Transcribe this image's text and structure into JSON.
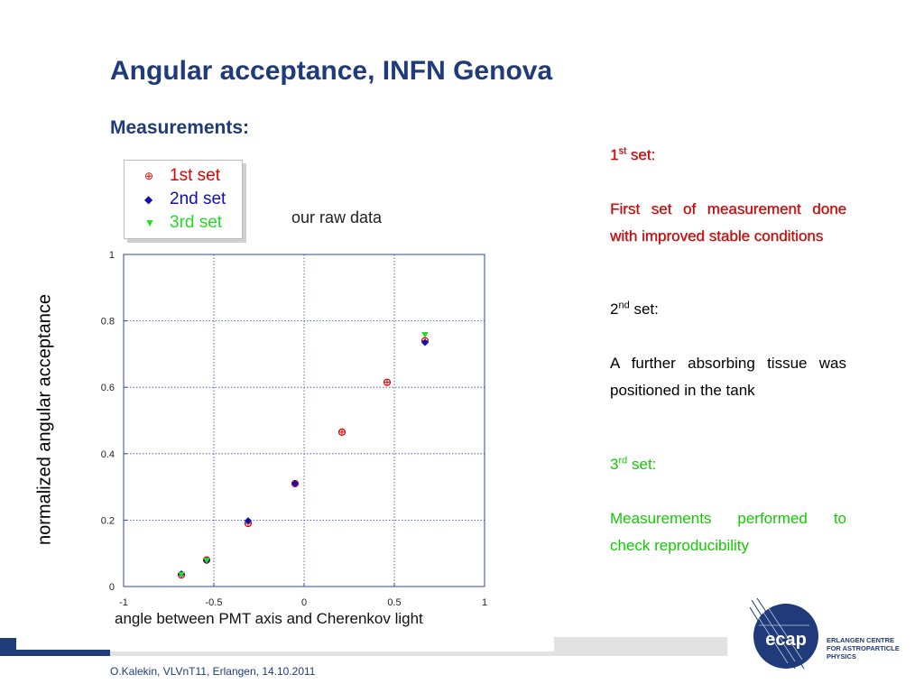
{
  "slide": {
    "title": "Angular acceptance, INFN Genova",
    "subtitle": "Measurements:",
    "footer": "O.Kalekin, VLVnT11, Erlangen, 14.10.2011"
  },
  "side_notes": {
    "set1": {
      "num": "1",
      "sup": "st",
      "label": "set:",
      "text": "First  set of measurement done with improved stable conditions"
    },
    "set2": {
      "num": "2",
      "sup": "nd",
      "label": "set:",
      "text": "A further absorbing tissue was positioned in the tank"
    },
    "set3": {
      "num": "3",
      "sup": "rd",
      "label": "set:",
      "text": "Measurements performed to check reproducibility"
    }
  },
  "logo": {
    "mark": "ecap",
    "text_lines": [
      "ERLANGEN CENTRE",
      "FOR ASTROPARTICLE",
      "PHYSICS"
    ]
  },
  "colors": {
    "brand": "#1f3b7a",
    "set1": "#e00000",
    "set2": "#1010aa",
    "set3": "#22dd22"
  },
  "chart_data": {
    "type": "scatter",
    "annotation": "our raw data",
    "xlabel": "angle between PMT axis and Cherenkov light",
    "ylabel": "normalized angular acceptance",
    "xlim": [
      -1,
      1
    ],
    "ylim": [
      0,
      1
    ],
    "x_ticks": [
      "-1",
      "-0.5",
      "0",
      "0.5",
      "1"
    ],
    "y_ticks": [
      "0",
      "0.2",
      "0.4",
      "0.6",
      "0.8",
      "1"
    ],
    "grid": true,
    "legend_position": "top-left, outside plot",
    "series": [
      {
        "name": "1st set",
        "marker": "open-circle-cross",
        "color": "#e00000",
        "points": [
          [
            -0.68,
            0.035
          ],
          [
            -0.54,
            0.08
          ],
          [
            -0.31,
            0.19
          ],
          [
            -0.05,
            0.31
          ],
          [
            0.21,
            0.465
          ],
          [
            0.46,
            0.615
          ],
          [
            0.67,
            0.74
          ]
        ]
      },
      {
        "name": "2nd set",
        "marker": "diamond",
        "color": "#1010aa",
        "points": [
          [
            -0.68,
            0.038
          ],
          [
            -0.54,
            0.078
          ],
          [
            -0.31,
            0.198
          ],
          [
            -0.05,
            0.31
          ],
          [
            0.67,
            0.735
          ]
        ]
      },
      {
        "name": "3rd set",
        "marker": "triangle-down",
        "color": "#22dd22",
        "points": [
          [
            -0.68,
            0.036
          ],
          [
            -0.54,
            0.078
          ],
          [
            0.67,
            0.758
          ]
        ]
      }
    ]
  }
}
